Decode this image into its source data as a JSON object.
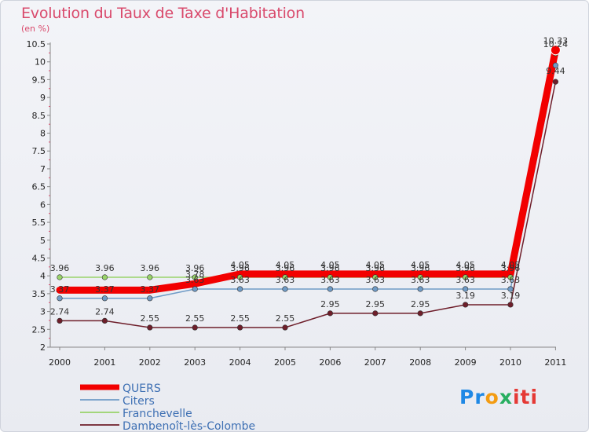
{
  "title": "Evolution du Taux de Taxe d'Habitation",
  "unit": "(en %)",
  "logo": "Proxiti",
  "chart_data": {
    "type": "line",
    "x": [
      "2000",
      "2001",
      "2002",
      "2003",
      "2004",
      "2005",
      "2006",
      "2007",
      "2008",
      "2009",
      "2010",
      "2011"
    ],
    "ylim": [
      2,
      10.5
    ],
    "yticks": [
      "2",
      "2.5",
      "3",
      "3.5",
      "4",
      "4.5",
      "5",
      "5.5",
      "6",
      "6.5",
      "7",
      "7.5",
      "8",
      "8.5",
      "9",
      "9.5",
      "10",
      "10.5"
    ],
    "series": [
      {
        "name": "Dambenoît-lès-Colombe",
        "color": "#6e1e2a",
        "values": [
          2.74,
          2.74,
          2.55,
          2.55,
          2.55,
          2.55,
          2.95,
          2.95,
          2.95,
          3.19,
          3.19,
          9.44
        ],
        "labels": [
          "2.74",
          "2.74",
          "2.55",
          "2.55",
          "2.55",
          "2.55",
          "2.95",
          "2.95",
          "2.95",
          "3.19",
          "3.19",
          "9.44"
        ]
      },
      {
        "name": "Citers",
        "color": "#6f9bc6",
        "values": [
          3.37,
          3.37,
          3.37,
          3.63,
          3.63,
          3.63,
          3.63,
          3.63,
          3.63,
          3.63,
          3.63,
          9.9
        ],
        "labels": [
          "3.37",
          "3.37",
          "3.37",
          "3.63",
          "3.63",
          "3.63",
          "3.63",
          "3.63",
          "3.63",
          "3.63",
          "3.63",
          ""
        ]
      },
      {
        "name": "Franchevelle",
        "color": "#99d36a",
        "values": [
          3.96,
          3.96,
          3.96,
          3.96,
          3.96,
          3.96,
          3.96,
          3.96,
          3.96,
          3.96,
          3.96,
          10.24
        ],
        "labels": [
          "3.96",
          "3.96",
          "3.96",
          "3.96",
          "3.96",
          "3.96",
          "3.96",
          "3.96",
          "3.96",
          "3.96",
          "3.96",
          "10.24"
        ]
      },
      {
        "name": "QUERS",
        "color": "#f20000",
        "values": [
          3.6,
          3.6,
          3.6,
          3.78,
          4.05,
          4.05,
          4.05,
          4.05,
          4.05,
          4.05,
          4.05,
          10.33
        ],
        "labels": [
          "",
          "",
          "",
          "3.78",
          "4.05",
          "4.05",
          "4.05",
          "4.05",
          "4.05",
          "4.05",
          "4.05",
          "10.33"
        ]
      }
    ],
    "legend_order": [
      "QUERS",
      "Citers",
      "Franchevelle",
      "Dambenoît-lès-Colombe"
    ]
  }
}
